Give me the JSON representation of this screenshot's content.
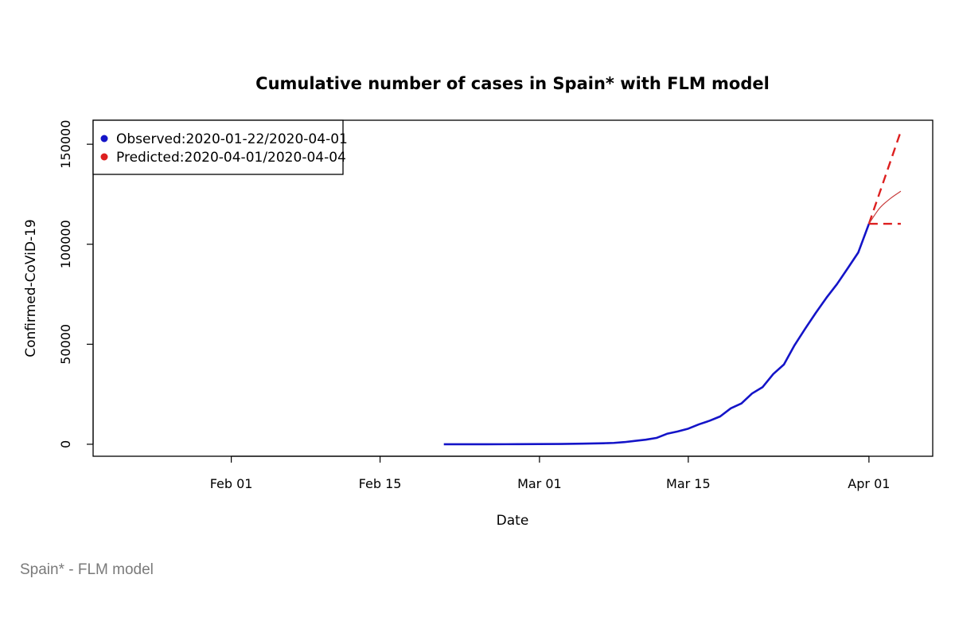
{
  "caption": "Spain* - FLM model",
  "colors": {
    "observed": "#1414c8",
    "predicted": "#dd2020",
    "predicted_mid": "#c83c3c",
    "axis": "#000000",
    "caption": "#7a7a7a"
  },
  "chart_data": {
    "type": "line",
    "title": "Cumulative number of cases in Spain* with FLM model",
    "xlabel": "Date",
    "ylabel": "Confirmed-CoViD-19",
    "xlim": [
      "2020-01-19",
      "2020-04-07"
    ],
    "ylim": [
      -6000,
      162000
    ],
    "x_ticks": [
      {
        "date": "2020-02-01",
        "label": "Feb 01"
      },
      {
        "date": "2020-02-15",
        "label": "Feb 15"
      },
      {
        "date": "2020-03-01",
        "label": "Mar 01"
      },
      {
        "date": "2020-03-15",
        "label": "Mar 15"
      },
      {
        "date": "2020-04-01",
        "label": "Apr 01"
      }
    ],
    "y_ticks": [
      {
        "value": 0,
        "label": "0"
      },
      {
        "value": 50000,
        "label": "50000"
      },
      {
        "value": 100000,
        "label": "100000"
      },
      {
        "value": 150000,
        "label": "150000"
      }
    ],
    "grid": false,
    "legend": {
      "position": "top-left",
      "entries": [
        {
          "label": "Observed:2020-01-22/2020-04-01",
          "color": "#1414c8"
        },
        {
          "label": "Predicted:2020-04-01/2020-04-04",
          "color": "#dd2020"
        }
      ]
    },
    "series": [
      {
        "name": "Observed:2020-01-22/2020-04-01",
        "style": "solid",
        "points": [
          [
            "2020-02-21",
            0
          ],
          [
            "2020-02-25",
            6
          ],
          [
            "2020-02-28",
            32
          ],
          [
            "2020-03-01",
            84
          ],
          [
            "2020-03-03",
            165
          ],
          [
            "2020-03-05",
            282
          ],
          [
            "2020-03-07",
            500
          ],
          [
            "2020-03-08",
            673
          ],
          [
            "2020-03-09",
            1073
          ],
          [
            "2020-03-10",
            1695
          ],
          [
            "2020-03-11",
            2277
          ],
          [
            "2020-03-12",
            3146
          ],
          [
            "2020-03-13",
            5232
          ],
          [
            "2020-03-14",
            6391
          ],
          [
            "2020-03-15",
            7798
          ],
          [
            "2020-03-16",
            9942
          ],
          [
            "2020-03-17",
            11748
          ],
          [
            "2020-03-18",
            13910
          ],
          [
            "2020-03-19",
            17963
          ],
          [
            "2020-03-20",
            20410
          ],
          [
            "2020-03-21",
            25374
          ],
          [
            "2020-03-22",
            28603
          ],
          [
            "2020-03-23",
            35136
          ],
          [
            "2020-03-24",
            39885
          ],
          [
            "2020-03-25",
            49515
          ],
          [
            "2020-03-26",
            57786
          ],
          [
            "2020-03-27",
            65719
          ],
          [
            "2020-03-28",
            73235
          ],
          [
            "2020-03-29",
            80110
          ],
          [
            "2020-03-30",
            87956
          ],
          [
            "2020-03-31",
            95923
          ],
          [
            "2020-04-01",
            110238
          ]
        ]
      },
      {
        "name": "Predicted upper",
        "style": "dashed",
        "points": [
          [
            "2020-04-01",
            110238
          ],
          [
            "2020-04-04",
            156500
          ]
        ]
      },
      {
        "name": "Predicted",
        "style": "solid-thin",
        "points": [
          [
            "2020-04-01",
            110238
          ],
          [
            "2020-04-02",
            118000
          ],
          [
            "2020-04-03",
            122800
          ],
          [
            "2020-04-04",
            126500
          ]
        ]
      },
      {
        "name": "Predicted lower",
        "style": "dashed",
        "points": [
          [
            "2020-04-01",
            110238
          ],
          [
            "2020-04-04",
            110238
          ]
        ]
      }
    ]
  }
}
